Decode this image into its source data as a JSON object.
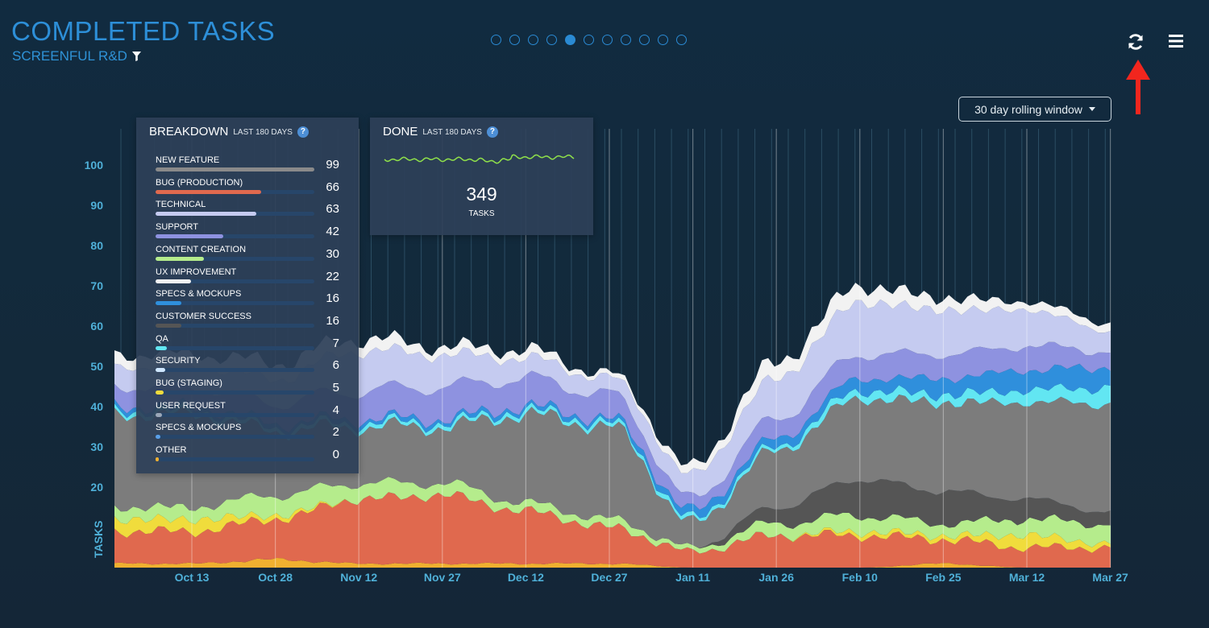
{
  "header": {
    "title": "COMPLETED TASKS",
    "subtitle": "SCREENFUL R&D",
    "filter_icon": "filter-icon",
    "page_dots": {
      "count": 11,
      "active_index": 4
    },
    "refresh_icon": "refresh-icon",
    "menu_icon": "hamburger-menu-icon"
  },
  "window_selector": {
    "label": "30 day rolling window"
  },
  "breakdown": {
    "title": "BREAKDOWN",
    "subtitle": "LAST 180 DAYS",
    "items": [
      {
        "label": "NEW FEATURE",
        "value": "99",
        "color": "#8a8a8a"
      },
      {
        "label": "BUG (PRODUCTION)",
        "value": "66",
        "color": "#e0694e"
      },
      {
        "label": "TECHNICAL",
        "value": "63",
        "color": "#c5cbf0"
      },
      {
        "label": "SUPPORT",
        "value": "42",
        "color": "#8e92e0"
      },
      {
        "label": "CONTENT CREATION",
        "value": "30",
        "color": "#b5ec8c"
      },
      {
        "label": "UX IMPROVEMENT",
        "value": "22",
        "color": "#f2f2f2"
      },
      {
        "label": "SPECS & MOCKUPS",
        "value": "16",
        "color": "#2f8fdc"
      },
      {
        "label": "CUSTOMER SUCCESS",
        "value": "16",
        "color": "#555555"
      },
      {
        "label": "QA",
        "value": "7",
        "color": "#62e6f2"
      },
      {
        "label": "SECURITY",
        "value": "6",
        "color": "#cfe7ff"
      },
      {
        "label": "BUG (STAGING)",
        "value": "5",
        "color": "#f0dc3c"
      },
      {
        "label": "USER REQUEST",
        "value": "4",
        "color": "#9aa7b8"
      },
      {
        "label": "SPECS & MOCKUPS",
        "value": "2",
        "color": "#5aa0e8"
      },
      {
        "label": "OTHER",
        "value": "0",
        "color": "#f0b030"
      }
    ]
  },
  "done": {
    "title": "DONE",
    "subtitle": "LAST 180 DAYS",
    "value": "349",
    "unit": "TASKS",
    "sparkline_color": "#8fe04a"
  },
  "chart_data": {
    "type": "area",
    "stacked": true,
    "ylabel": "TASKS",
    "ylim": [
      0,
      100
    ],
    "yticks": [
      20,
      30,
      40,
      50,
      60,
      70,
      80,
      90,
      100
    ],
    "x": [
      "Oct 13",
      "Oct 28",
      "Nov 12",
      "Nov 27",
      "Dec 12",
      "Dec 27",
      "Jan 11",
      "Jan 26",
      "Feb 10",
      "Feb 25",
      "Mar 12",
      "Mar 27"
    ],
    "grid": "vertical lines",
    "series": [
      {
        "name": "OTHER",
        "color": "#f0b030",
        "values": [
          1,
          2,
          1,
          1,
          1,
          1,
          0,
          0,
          0,
          1,
          0,
          0
        ]
      },
      {
        "name": "BUG (PRODUCTION)",
        "color": "#e0694e",
        "values": [
          8,
          10,
          16,
          17,
          13,
          9,
          4,
          8,
          8,
          6,
          5,
          5
        ]
      },
      {
        "name": "BUG (STAGING)",
        "color": "#f0dc3c",
        "values": [
          3,
          1,
          0,
          0,
          0,
          0,
          0,
          0,
          1,
          1,
          3,
          1
        ]
      },
      {
        "name": "CONTENT CREATION",
        "color": "#b5ec8c",
        "values": [
          3,
          5,
          4,
          3,
          2,
          2,
          1,
          3,
          4,
          3,
          4,
          5
        ]
      },
      {
        "name": "CUSTOMER SUCCESS",
        "color": "#555555",
        "values": [
          0,
          0,
          0,
          0,
          0,
          0,
          0,
          4,
          9,
          8,
          5,
          3
        ]
      },
      {
        "name": "NEW FEATURE",
        "color": "#7c7c7c",
        "values": [
          23,
          16,
          14,
          14,
          22,
          23,
          6,
          14,
          20,
          22,
          24,
          27
        ]
      },
      {
        "name": "QA",
        "color": "#62e6f2",
        "values": [
          1,
          1,
          1,
          1,
          1,
          1,
          1,
          1,
          2,
          2,
          3,
          4
        ]
      },
      {
        "name": "SPECS & MOCKUPS",
        "color": "#2f8fdc",
        "values": [
          1,
          1,
          1,
          1,
          1,
          1,
          2,
          2,
          3,
          4,
          5,
          5
        ]
      },
      {
        "name": "SUPPORT",
        "color": "#8e92e0",
        "values": [
          5,
          5,
          7,
          8,
          7,
          6,
          3,
          5,
          6,
          6,
          6,
          4
        ]
      },
      {
        "name": "TECHNICAL",
        "color": "#c5cbf0",
        "values": [
          5,
          6,
          10,
          8,
          5,
          4,
          6,
          10,
          13,
          11,
          9,
          5
        ]
      },
      {
        "name": "UX IMPROVEMENT",
        "color": "#f2f2f2",
        "values": [
          3,
          4,
          3,
          2,
          2,
          1,
          2,
          4,
          4,
          3,
          2,
          2
        ]
      }
    ]
  }
}
